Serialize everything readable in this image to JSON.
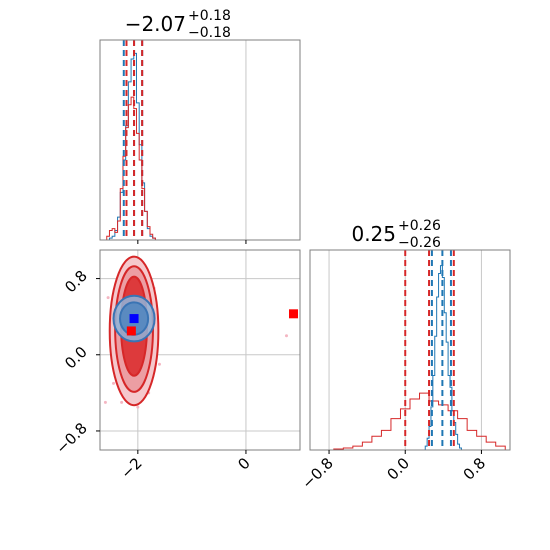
{
  "chart_data": [
    {
      "type": "histogram",
      "panel": "top-left",
      "title": {
        "main": "−2.07",
        "sup": "+0.18",
        "sub": "−0.18"
      },
      "xlim": [
        -2.7,
        1.0
      ],
      "colors": {
        "blue": "#1f77b4",
        "red": "#d62728"
      },
      "quantile_lines": {
        "blue": [
          -2.26,
          -2.07,
          -1.92
        ],
        "red": [
          -2.21,
          -2.07,
          -1.92
        ]
      },
      "series": [
        {
          "color": "blue",
          "x": [
            -2.6,
            -2.55,
            -2.5,
            -2.45,
            -2.4,
            -2.35,
            -2.3,
            -2.25,
            -2.2,
            -2.15,
            -2.1,
            -2.05,
            -2.0,
            -1.95,
            -1.9,
            -1.85,
            -1.8,
            -1.75,
            -1.7,
            -1.65,
            -1.6
          ],
          "values": [
            0,
            0,
            0.01,
            0.02,
            0.05,
            0.12,
            0.25,
            0.42,
            0.6,
            0.83,
            0.95,
            0.98,
            0.72,
            0.5,
            0.3,
            0.15,
            0.06,
            0.02,
            0.01,
            0,
            0
          ]
        },
        {
          "color": "red",
          "x": [
            -2.6,
            -2.55,
            -2.5,
            -2.45,
            -2.4,
            -2.35,
            -2.3,
            -2.25,
            -2.2,
            -2.15,
            -2.1,
            -2.05,
            -2.0,
            -1.95,
            -1.9,
            -1.85,
            -1.8,
            -1.75,
            -1.7,
            -1.65,
            -1.6
          ],
          "values": [
            0,
            0.02,
            0.05,
            0.06,
            0.04,
            0.1,
            0.27,
            0.44,
            0.59,
            0.71,
            0.75,
            0.69,
            0.56,
            0.42,
            0.27,
            0.15,
            0.07,
            0.03,
            0.01,
            0,
            0
          ]
        }
      ]
    },
    {
      "type": "scatter",
      "panel": "bottom-left",
      "xlim": [
        -2.7,
        1.0
      ],
      "ylim": [
        -1.0,
        1.1
      ],
      "xticks": [
        "−2",
        "0"
      ],
      "yticks": [
        "−0.8",
        "0.0",
        "0.8"
      ],
      "red_contours": [
        {
          "cx": -2.07,
          "cy": 0.25,
          "rx": 0.45,
          "ry": 0.78
        },
        {
          "cx": -2.07,
          "cy": 0.27,
          "rx": 0.35,
          "ry": 0.66
        },
        {
          "cx": -2.07,
          "cy": 0.3,
          "rx": 0.24,
          "ry": 0.52
        }
      ],
      "blue_contours": [
        {
          "cx": -2.07,
          "cy": 0.38,
          "rx": 0.38,
          "ry": 0.24
        },
        {
          "cx": -2.07,
          "cy": 0.38,
          "rx": 0.26,
          "ry": 0.17
        }
      ],
      "markers": [
        {
          "x": -2.07,
          "y": 0.38,
          "color": "#0000ff"
        },
        {
          "x": -2.12,
          "y": 0.25,
          "color": "#ff0000"
        },
        {
          "x": 0.88,
          "y": 0.43,
          "color": "#ff0000"
        }
      ],
      "scatter_points": [
        {
          "x": -2.55,
          "y": 0.6
        },
        {
          "x": -2.45,
          "y": -0.3
        },
        {
          "x": -2.3,
          "y": -0.5
        },
        {
          "x": -2.25,
          "y": 0.9
        },
        {
          "x": -1.8,
          "y": -0.4
        },
        {
          "x": -1.7,
          "y": 0.7
        },
        {
          "x": -2.0,
          "y": -0.55
        },
        {
          "x": -2.4,
          "y": 0.1
        },
        {
          "x": -1.75,
          "y": 0.15
        },
        {
          "x": -2.15,
          "y": -0.48
        },
        {
          "x": -2.6,
          "y": -0.5
        },
        {
          "x": -1.6,
          "y": -0.1
        },
        {
          "x": 0.75,
          "y": 0.2
        },
        {
          "x": -2.05,
          "y": 0.95
        }
      ]
    },
    {
      "type": "histogram",
      "panel": "bottom-right",
      "title": {
        "main": "0.25",
        "sup": "+0.26",
        "sub": "−0.26"
      },
      "xlim": [
        -1.0,
        1.1
      ],
      "xticks": [
        "−0.8",
        "0.0",
        "0.8"
      ],
      "quantile_lines": {
        "blue": [
          0.28,
          0.39,
          0.48
        ],
        "red": [
          0.0,
          0.25,
          0.51
        ]
      },
      "series": [
        {
          "color": "red",
          "x": [
            -0.7,
            -0.6,
            -0.5,
            -0.4,
            -0.3,
            -0.2,
            -0.1,
            0.0,
            0.1,
            0.2,
            0.3,
            0.4,
            0.5,
            0.6,
            0.7,
            0.8,
            0.9,
            1.0
          ],
          "values": [
            0.005,
            0.01,
            0.02,
            0.04,
            0.07,
            0.1,
            0.16,
            0.21,
            0.26,
            0.29,
            0.25,
            0.23,
            0.2,
            0.16,
            0.1,
            0.07,
            0.04,
            0.02
          ]
        },
        {
          "color": "blue",
          "x": [
            0.2,
            0.22,
            0.24,
            0.26,
            0.28,
            0.3,
            0.32,
            0.34,
            0.36,
            0.38,
            0.4,
            0.42,
            0.44,
            0.46,
            0.48,
            0.5,
            0.52,
            0.54,
            0.56,
            0.58,
            0.6
          ],
          "values": [
            0,
            0.02,
            0.06,
            0.12,
            0.22,
            0.38,
            0.58,
            0.78,
            0.9,
            0.94,
            0.88,
            0.7,
            0.55,
            0.38,
            0.32,
            0.2,
            0.14,
            0.08,
            0.03,
            0.01,
            0
          ]
        }
      ]
    }
  ]
}
